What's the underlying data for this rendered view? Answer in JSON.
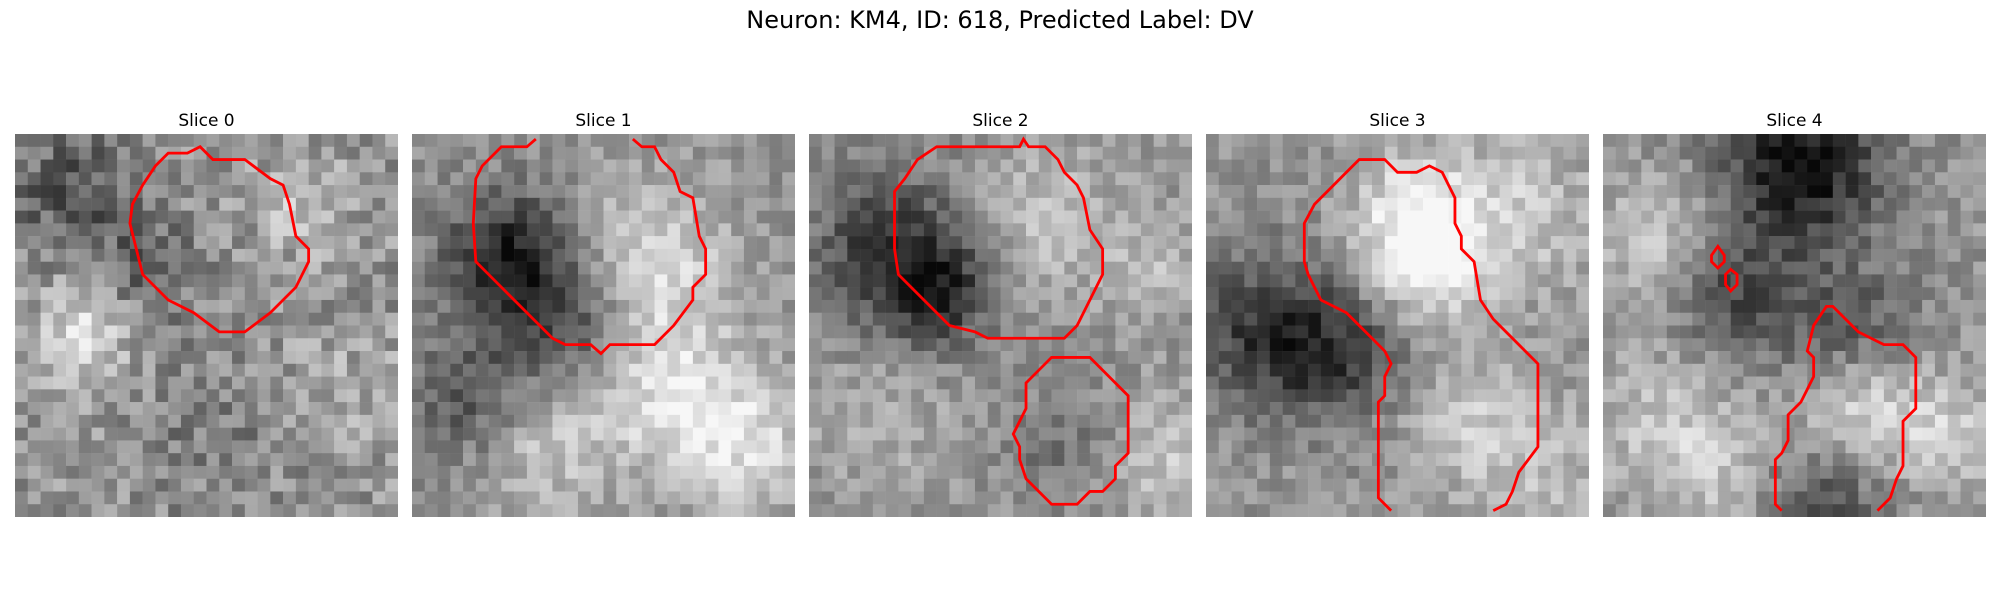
{
  "figure": {
    "title": "Neuron: KM4, ID: 618, Predicted Label: DV"
  },
  "colors": {
    "contour": "#ff0000",
    "background": "#ffffff"
  },
  "panels": [
    {
      "title": "Slice 0"
    },
    {
      "title": "Slice 1"
    },
    {
      "title": "Slice 2"
    },
    {
      "title": "Slice 3"
    },
    {
      "title": "Slice 4"
    }
  ]
}
